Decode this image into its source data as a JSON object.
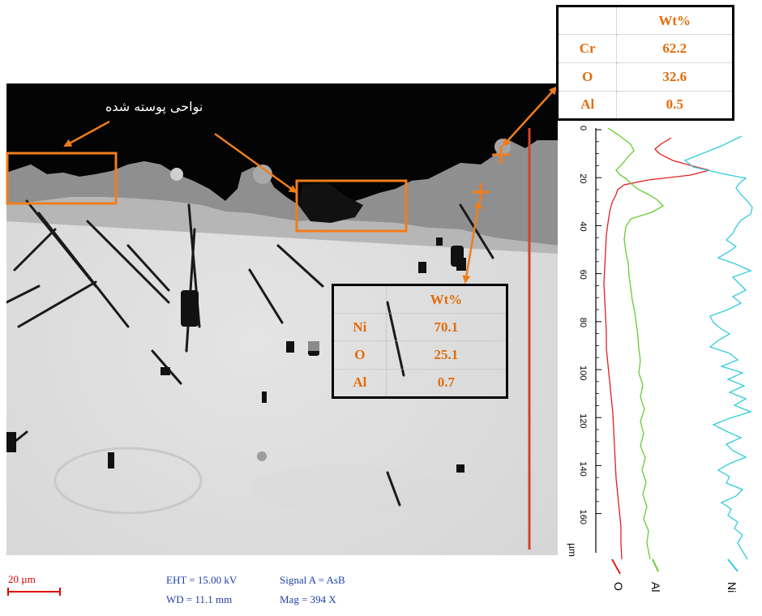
{
  "annotation_label": "نواحی پوسته شده",
  "eds_top": {
    "header": [
      "",
      "Wt%"
    ],
    "rows": [
      [
        "Cr",
        "62.2"
      ],
      [
        "O",
        "32.6"
      ],
      [
        "Al",
        "0.5"
      ]
    ]
  },
  "eds_mid": {
    "header": [
      "",
      "Wt%"
    ],
    "rows": [
      [
        "Ni",
        "70.1"
      ],
      [
        "O",
        "25.1"
      ],
      [
        "Al",
        "0.7"
      ]
    ]
  },
  "scale_bar": "20 µm",
  "sem_info": {
    "eht": "EHT = 15.00 kV",
    "wd": "WD = 11.1 mm",
    "signal": "Signal A = AsB",
    "mag": "Mag =   394 X"
  },
  "linescan": {
    "axis_unit": "µm",
    "ticks": [
      "0",
      "20",
      "40",
      "60",
      "80",
      "100",
      "120",
      "140",
      "160"
    ],
    "series": [
      {
        "name": "O",
        "color": "#e02020"
      },
      {
        "name": "Al",
        "color": "#66cc33"
      },
      {
        "name": "Ni",
        "color": "#33ccdd"
      }
    ]
  },
  "colors": {
    "annotation": "#f07d1c",
    "scan_line": "#d9402b",
    "table_text": "#e46c0a",
    "info_text": "#1f3fa6",
    "scale_text": "#e00000"
  }
}
